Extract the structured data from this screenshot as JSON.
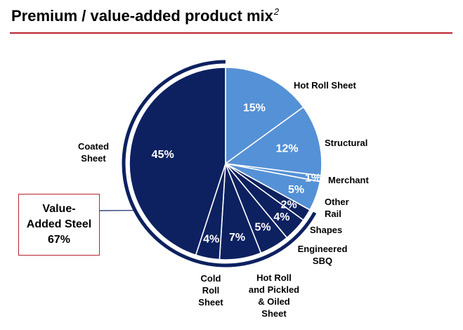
{
  "header": {
    "title": "Premium / value-added product mix",
    "title_sup": "2"
  },
  "callout": {
    "text": "Value-\nAdded Steel\n67%"
  },
  "colors": {
    "dark_navy": "#0d2160",
    "light_blue": "#5591d6",
    "accent_red": "#b8232f"
  },
  "chart_data": {
    "type": "pie",
    "title": "Premium / value-added product mix",
    "slices": [
      {
        "label": "Hot Roll Sheet",
        "value": 15,
        "value_label": "15%",
        "color": "#5591d6"
      },
      {
        "label": "Structural",
        "value": 12,
        "value_label": "12%",
        "color": "#5591d6"
      },
      {
        "label": "Merchant",
        "value": 1,
        "value_label": "1%",
        "color": "#5591d6"
      },
      {
        "label": "Other Rail",
        "value": 5,
        "value_label": "5%",
        "color": "#5591d6"
      },
      {
        "label": "Shapes",
        "value": 2,
        "value_label": "2%",
        "color": "#0d2160"
      },
      {
        "label": "Engineered SBQ",
        "value": 4,
        "value_label": "4%",
        "color": "#0d2160"
      },
      {
        "label": "Hot Roll and Pickled & Oiled Sheet",
        "value": 5,
        "value_label": "5%",
        "color": "#0d2160"
      },
      {
        "label": "Cold Roll Sheet",
        "value": 7,
        "value_label": "7%",
        "color": "#0d2160"
      },
      {
        "label": "Cold Roll Sheet",
        "value": 4,
        "value_label": "4%",
        "color": "#0d2160"
      },
      {
        "label": "Coated Sheet",
        "value": 45,
        "value_label": "45%",
        "color": "#0d2160"
      }
    ],
    "category_labels": [
      "Hot Roll Sheet",
      "Structural",
      "Merchant",
      "Other\nRail",
      "Shapes",
      "Engineered\nSBQ",
      "Hot Roll\nand Pickled\n& Oiled\nSheet",
      "Cold\nRoll\nSheet",
      "Coated\nSheet"
    ],
    "value_added_share": "67%"
  }
}
